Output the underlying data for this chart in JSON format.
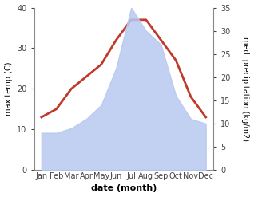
{
  "months": [
    "Jan",
    "Feb",
    "Mar",
    "Apr",
    "May",
    "Jun",
    "Jul",
    "Aug",
    "Sep",
    "Oct",
    "Nov",
    "Dec"
  ],
  "temperature": [
    13,
    15,
    20,
    23,
    26,
    32,
    37,
    37,
    32,
    27,
    18,
    13
  ],
  "precipitation": [
    8,
    8,
    9,
    11,
    14,
    22,
    35,
    30,
    27,
    16,
    11,
    10
  ],
  "temp_color": "#c0392b",
  "precip_color": "#b8c8f0",
  "temp_ylim": [
    0,
    40
  ],
  "precip_ylim": [
    0,
    35
  ],
  "temp_yticks": [
    0,
    10,
    20,
    30,
    40
  ],
  "precip_yticks": [
    0,
    5,
    10,
    15,
    20,
    25,
    30,
    35
  ],
  "ylabel_left": "max temp (C)",
  "ylabel_right": "med. precipitation (kg/m2)",
  "xlabel": "date (month)",
  "background_color": "#ffffff",
  "line_width": 2.0,
  "label_fontsize": 7,
  "xlabel_fontsize": 8,
  "tick_fontsize": 7
}
